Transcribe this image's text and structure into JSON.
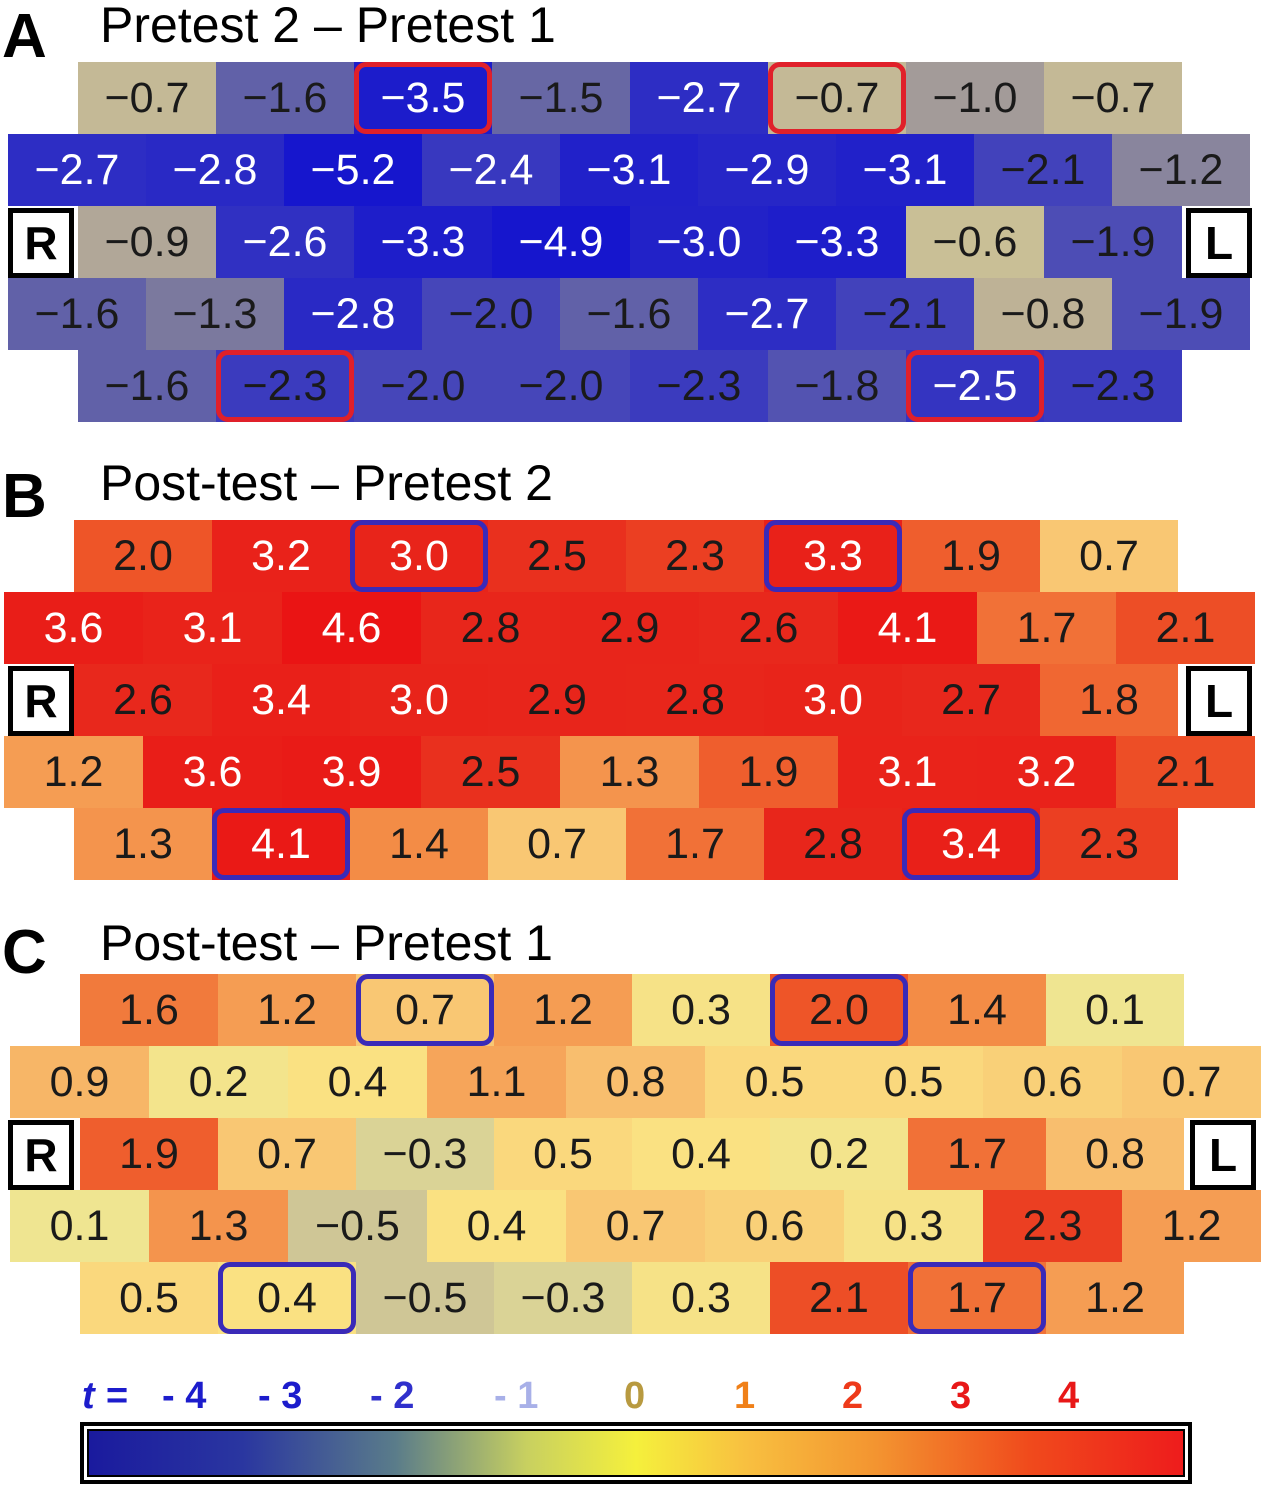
{
  "panels": [
    {
      "letter": "A",
      "title": "Pretest 2 – Pretest 1",
      "right_label": "R",
      "left_label": "L",
      "rows": [
        [
          "−0.7",
          "−1.6",
          "−3.5",
          "−1.5",
          "−2.7",
          "−0.7",
          "−1.0",
          "−0.7"
        ],
        [
          "−2.7",
          "−2.8",
          "−5.2",
          "−2.4",
          "−3.1",
          "−2.9",
          "−3.1",
          "−2.1",
          "−1.2"
        ],
        [
          "−0.9",
          "−2.6",
          "−3.3",
          "−4.9",
          "−3.0",
          "−3.3",
          "−0.6",
          "−1.9"
        ],
        [
          "−1.6",
          "−1.3",
          "−2.8",
          "−2.0",
          "−1.6",
          "−2.7",
          "−2.1",
          "−0.8",
          "−1.9"
        ],
        [
          "−1.6",
          "−2.3",
          "−2.0",
          "−2.0",
          "−2.3",
          "−1.8",
          "−2.5",
          "−2.3"
        ]
      ],
      "highlight_color": "#e0202a",
      "highlighted_cells": [
        [
          0,
          2
        ],
        [
          0,
          5
        ],
        [
          4,
          1
        ],
        [
          4,
          6
        ]
      ]
    },
    {
      "letter": "B",
      "title": "Post-test – Pretest 2",
      "right_label": "R",
      "left_label": "L",
      "rows": [
        [
          "2.0",
          "3.2",
          "3.0",
          "2.5",
          "2.3",
          "3.3",
          "1.9",
          "0.7"
        ],
        [
          "3.6",
          "3.1",
          "4.6",
          "2.8",
          "2.9",
          "2.6",
          "4.1",
          "1.7",
          "2.1"
        ],
        [
          "2.6",
          "3.4",
          "3.0",
          "2.9",
          "2.8",
          "3.0",
          "2.7",
          "1.8"
        ],
        [
          "1.2",
          "3.6",
          "3.9",
          "2.5",
          "1.3",
          "1.9",
          "3.1",
          "3.2",
          "2.1"
        ],
        [
          "1.3",
          "4.1",
          "1.4",
          "0.7",
          "1.7",
          "2.8",
          "3.4",
          "2.3"
        ]
      ],
      "highlight_color": "#3a2ab8",
      "highlighted_cells": [
        [
          0,
          2
        ],
        [
          0,
          5
        ],
        [
          4,
          1
        ],
        [
          4,
          6
        ]
      ]
    },
    {
      "letter": "C",
      "title": "Post-test – Pretest 1",
      "right_label": "R",
      "left_label": "L",
      "rows": [
        [
          "1.6",
          "1.2",
          "0.7",
          "1.2",
          "0.3",
          "2.0",
          "1.4",
          "0.1"
        ],
        [
          "0.9",
          "0.2",
          "0.4",
          "1.1",
          "0.8",
          "0.5",
          "0.5",
          "0.6",
          "0.7"
        ],
        [
          "1.9",
          "0.7",
          "−0.3",
          "0.5",
          "0.4",
          "0.2",
          "1.7",
          "0.8"
        ],
        [
          "0.1",
          "1.3",
          "−0.5",
          "0.4",
          "0.7",
          "0.6",
          "0.3",
          "2.3",
          "1.2"
        ],
        [
          "0.5",
          "0.4",
          "−0.5",
          "−0.3",
          "0.3",
          "2.1",
          "1.7",
          "1.2"
        ]
      ],
      "highlight_color": "#3a2ab8",
      "highlighted_cells": [
        [
          0,
          2
        ],
        [
          0,
          5
        ],
        [
          4,
          1
        ],
        [
          4,
          6
        ]
      ]
    }
  ],
  "legend": {
    "prefix": "t =",
    "ticks": [
      "- 4",
      "- 3",
      "- 2",
      "- 1",
      "0",
      "1",
      "2",
      "3",
      "4"
    ],
    "tick_colors": [
      "#1c1ccc",
      "#1c1ccc",
      "#3030cc",
      "#a8b0e8",
      "#b89a40",
      "#f08018",
      "#ee3a1a",
      "#e81818",
      "#e81818"
    ]
  },
  "chart_data": {
    "type": "heatmap",
    "colorbar_label": "t",
    "colorbar_range": [
      -4,
      4
    ],
    "panels": [
      {
        "title": "Pretest 2 – Pretest 1",
        "values": [
          [
            -0.7,
            -1.6,
            -3.5,
            -1.5,
            -2.7,
            -0.7,
            -1.0,
            -0.7
          ],
          [
            -2.7,
            -2.8,
            -5.2,
            -2.4,
            -3.1,
            -2.9,
            -3.1,
            -2.1,
            -1.2
          ],
          [
            -0.9,
            -2.6,
            -3.3,
            -4.9,
            -3.0,
            -3.3,
            -0.6,
            -1.9
          ],
          [
            -1.6,
            -1.3,
            -2.8,
            -2.0,
            -1.6,
            -2.7,
            -2.1,
            -0.8,
            -1.9
          ],
          [
            -1.6,
            -2.3,
            -2.0,
            -2.0,
            -2.3,
            -1.8,
            -2.5,
            -2.3
          ]
        ]
      },
      {
        "title": "Post-test – Pretest 2",
        "values": [
          [
            2.0,
            3.2,
            3.0,
            2.5,
            2.3,
            3.3,
            1.9,
            0.7
          ],
          [
            3.6,
            3.1,
            4.6,
            2.8,
            2.9,
            2.6,
            4.1,
            1.7,
            2.1
          ],
          [
            2.6,
            3.4,
            3.0,
            2.9,
            2.8,
            3.0,
            2.7,
            1.8
          ],
          [
            1.2,
            3.6,
            3.9,
            2.5,
            1.3,
            1.9,
            3.1,
            3.2,
            2.1
          ],
          [
            1.3,
            4.1,
            1.4,
            0.7,
            1.7,
            2.8,
            3.4,
            2.3
          ]
        ]
      },
      {
        "title": "Post-test – Pretest 1",
        "values": [
          [
            1.6,
            1.2,
            0.7,
            1.2,
            0.3,
            2.0,
            1.4,
            0.1
          ],
          [
            0.9,
            0.2,
            0.4,
            1.1,
            0.8,
            0.5,
            0.5,
            0.6,
            0.7
          ],
          [
            1.9,
            0.7,
            -0.3,
            0.5,
            0.4,
            0.2,
            1.7,
            0.8
          ],
          [
            0.1,
            1.3,
            -0.5,
            0.4,
            0.7,
            0.6,
            0.3,
            2.3,
            1.2
          ],
          [
            0.5,
            0.4,
            -0.5,
            -0.3,
            0.3,
            2.1,
            1.7,
            1.2
          ]
        ]
      }
    ]
  }
}
